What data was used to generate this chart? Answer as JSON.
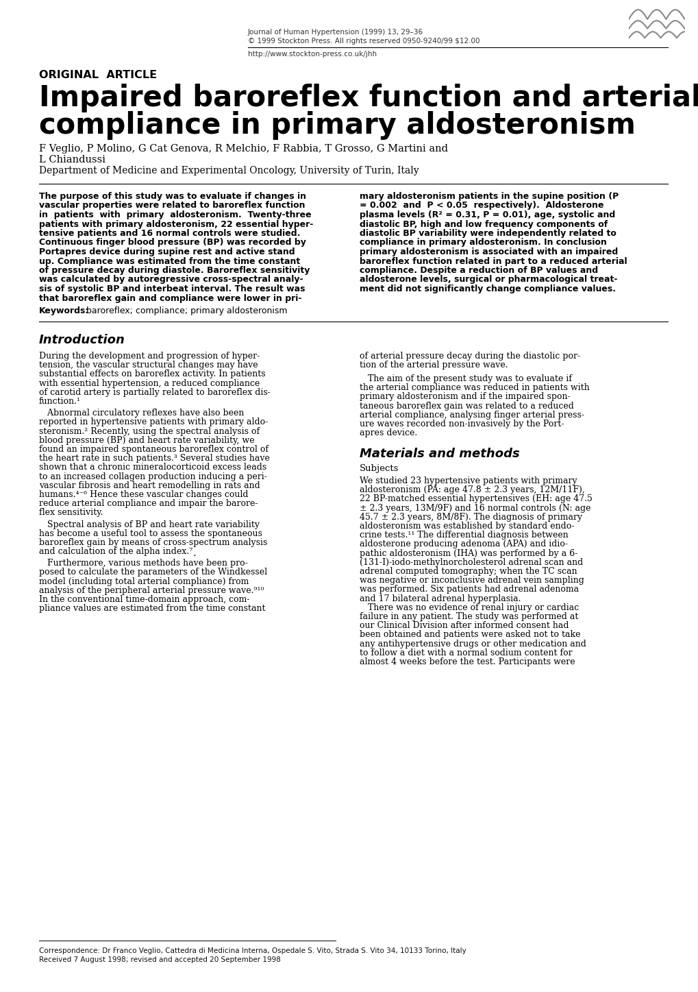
{
  "journal_line1": "Journal of Human Hypertension (1999) 13, 29–36",
  "journal_line2": "© 1999 Stockton Press. All rights reserved 0950-9240/99 $12.00",
  "journal_url": "http://www.stockton-press.co.uk/jhh",
  "section_label": "ORIGINAL  ARTICLE",
  "title_line1": "Impaired baroreflex function and arterial",
  "title_line2": "compliance in primary aldosteronism",
  "authors_line1": "F Veglio, P Molino, G Cat Genova, R Melchio, F Rabbia, T Grosso, G Martini and",
  "authors_line2": "L Chiandussi",
  "affiliation": "Department of Medicine and Experimental Oncology, University of Turin, Italy",
  "abstract_left_lines": [
    "The purpose of this study was to evaluate if changes in",
    "vascular properties were related to baroreflex function",
    "in  patients  with  primary  aldosteronism.  Twenty-three",
    "patients with primary aldosteronism, 22 essential hyper-",
    "tensive patients and 16 normal controls were studied.",
    "Continuous finger blood pressure (BP) was recorded by",
    "Portapres device during supine rest and active stand",
    "up. Compliance was estimated from the time constant",
    "of pressure decay during diastole. Baroreflex sensitivity",
    "was calculated by autoregressive cross-spectral analy-",
    "sis of systolic BP and interbeat interval. The result was",
    "that baroreflex gain and compliance were lower in pri-"
  ],
  "abstract_right_lines": [
    "mary aldosteronism patients in the supine position (P",
    "= 0.002  and  P < 0.05  respectively).  Aldosterone",
    "plasma levels (R² = 0.31, P = 0.01), age, systolic and",
    "diastolic BP, high and low frequency components of",
    "diastolic BP variability were independently related to",
    "compliance in primary aldosteronism. In conclusion",
    "primary aldosteronism is associated with an impaired",
    "baroreflex function related in part to a reduced arterial",
    "compliance. Despite a reduction of BP values and",
    "aldosterone levels, surgical or pharmacological treat-",
    "ment did not significantly change compliance values."
  ],
  "keywords_bold": "Keywords:",
  "keywords_rest": " baroreflex; compliance; primary aldosteronism",
  "intro_heading": "Introduction",
  "intro_left_paras": [
    "During the development and progression of hyper-\ntension, the vascular structural changes may have\nsubstantial effects on baroreflex activity. In patients\nwith essential hypertension, a reduced compliance\nof carotid artery is partially related to baroreflex dis-\nfunction.¹",
    "   Abnormal circulatory reflexes have also been\nreported in hypertensive patients with primary aldo-\nsteronism.² Recently, using the spectral analysis of\nblood pressure (BP) and heart rate variability, we\nfound an impaired spontaneous baroreflex control of\nthe heart rate in such patients.³ Several studies have\nshown that a chronic mineralocorticoid excess leads\nto an increased collagen production inducing a peri-\nvascular fibrosis and heart remodelling in rats and\nhumans.⁴⁻⁶ Hence these vascular changes could\nreduce arterial compliance and impair the barore-\nflex sensitivity.",
    "   Spectral analysis of BP and heart rate variability\nhas become a useful tool to assess the spontaneous\nbaroreflex gain by means of cross-spectrum analysis\nand calculation of the alpha index.⁷¸",
    "   Furthermore, various methods have been pro-\nposed to calculate the parameters of the Windkessel\nmodel (including total arterial compliance) from\nanalysis of the peripheral arterial pressure wave.⁹¹⁰\nIn the conventional time-domain approach, com-\npliance values are estimated from the time constant"
  ],
  "intro_right_paras": [
    "of arterial pressure decay during the diastolic por-\ntion of the arterial pressure wave.",
    "   The aim of the present study was to evaluate if\nthe arterial compliance was reduced in patients with\nprimary aldosteronism and if the impaired spon-\ntaneous baroreflex gain was related to a reduced\narterial compliance, analysing finger arterial press-\nure waves recorded non-invasively by the Port-\napres device."
  ],
  "methods_heading": "Materials and methods",
  "subjects_subheading": "Subjects",
  "subjects_lines": [
    "We studied 23 hypertensive patients with primary",
    "aldosteronism (PA: age 47.8 ± 2.3 years, 12M/11F),",
    "22 BP-matched essential hypertensives (EH: age 47.5",
    "± 2.3 years, 13M/9F) and 16 normal controls (N: age",
    "45.7 ± 2.3 years, 8M/8F). The diagnosis of primary",
    "aldosteronism was established by standard endo-",
    "crine tests.¹¹ The differential diagnosis between",
    "aldosterone producing adenoma (APA) and idio-",
    "pathic aldosteronism (IHA) was performed by a 6-",
    "(131-I)-iodo-methylnorcholesterol adrenal scan and",
    "adrenal computed tomography; when the TC scan",
    "was negative or inconclusive adrenal vein sampling",
    "was performed. Six patients had adrenal adenoma",
    "and 17 bilateral adrenal hyperplasia.",
    "   There was no evidence of renal injury or cardiac",
    "failure in any patient. The study was performed at",
    "our Clinical Division after informed consent had",
    "been obtained and patients were asked not to take",
    "any antihypertensive drugs or other medication and",
    "to follow a diet with a normal sodium content for",
    "almost 4 weeks before the test. Participants were"
  ],
  "footnote_line": "Correspondence: Dr Franco Veglio, Cattedra di Medicina Interna, Ospedale S. Vito, Strada S. Vito 34, 10133 Torino, Italy",
  "footnote_line2": "Received 7 August 1998; revised and accepted 20 September 1998",
  "bg_color": "#ffffff"
}
